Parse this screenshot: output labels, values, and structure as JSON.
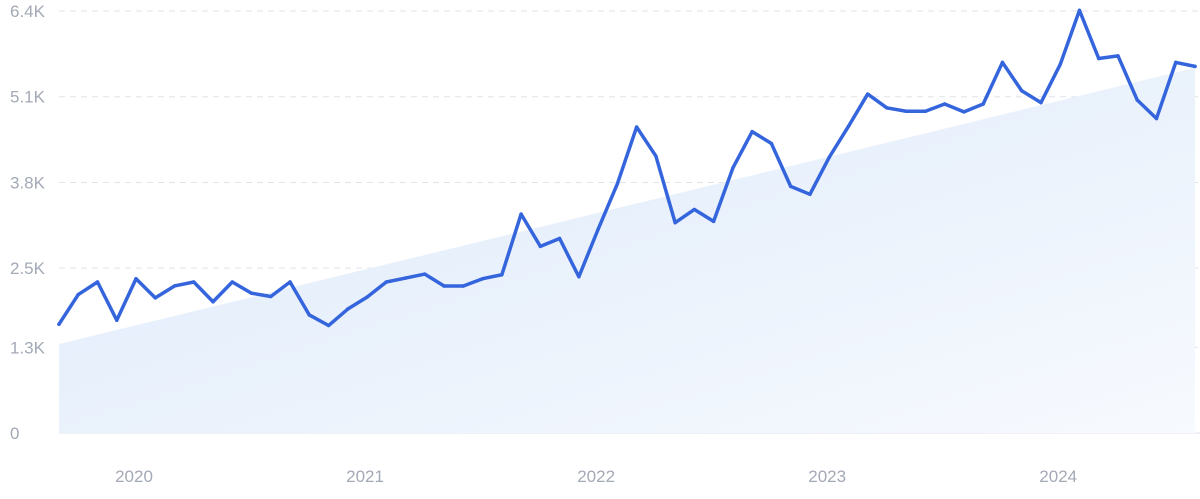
{
  "chart_data": {
    "type": "line",
    "title": "",
    "xlabel": "",
    "ylabel": "",
    "x_ticks": [
      "2020",
      "2021",
      "2022",
      "2023",
      "2024"
    ],
    "y_ticks": [
      "0",
      "1.3K",
      "2.5K",
      "3.8K",
      "5.1K",
      "6.4K"
    ],
    "y_tick_values": [
      0,
      1300,
      2500,
      3800,
      5100,
      6400
    ],
    "ylim": [
      0,
      6400
    ],
    "xlim": [
      0,
      59
    ],
    "grid": true,
    "series": [
      {
        "values": [
          1650,
          2100,
          2290,
          1710,
          2340,
          2050,
          2230,
          2290,
          1990,
          2290,
          2120,
          2070,
          2290,
          1790,
          1630,
          1880,
          2060,
          2290,
          2350,
          2410,
          2230,
          2230,
          2340,
          2400,
          3320,
          2830,
          2950,
          2370,
          3090,
          3780,
          4640,
          4200,
          3190,
          3390,
          3210,
          4020,
          4570,
          4390,
          3740,
          3620,
          4180,
          4650,
          5140,
          4930,
          4880,
          4880,
          4990,
          4870,
          4990,
          5620,
          5190,
          5010,
          5590,
          6410,
          5680,
          5720,
          5050,
          4770,
          5620,
          5560
        ]
      },
      {
        "values": [
          1350,
          5540
        ]
      }
    ],
    "colors": {
      "line": "#3565dc",
      "trend_fill_start": "#dde9fa",
      "trend_fill_end": "#f7fafe",
      "tick_text": "#a3a9b5",
      "grid": "#dfe3ea"
    }
  }
}
